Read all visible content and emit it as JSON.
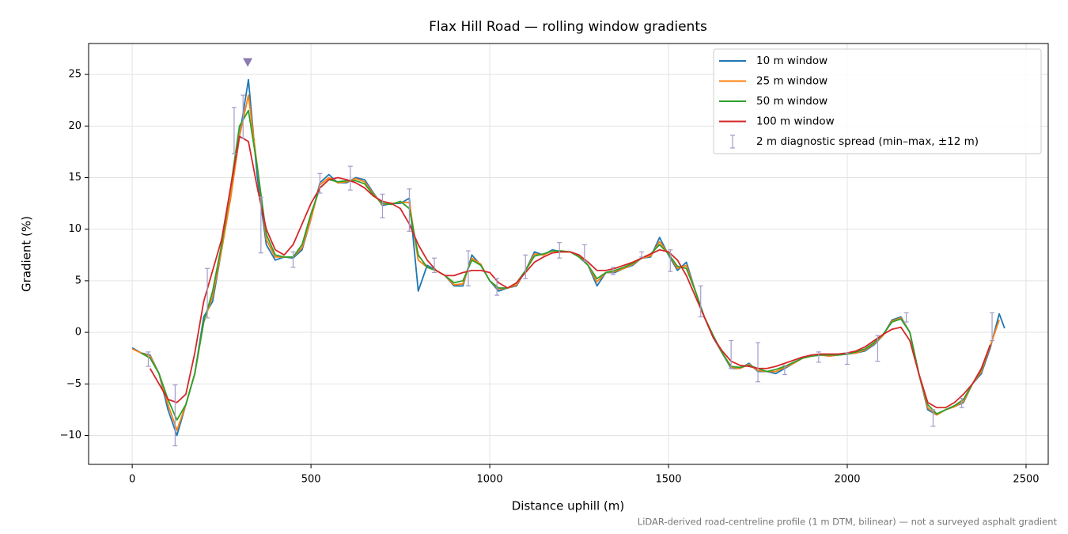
{
  "chart_data": {
    "type": "line",
    "title": "Flax Hill Road — rolling window gradients",
    "xlabel": "Distance uphill (m)",
    "ylabel": "Gradient (%)",
    "footnote": "LiDAR-derived road-centreline profile (1 m DTM, bilinear) — not a surveyed asphalt gradient",
    "xlim": [
      -122,
      2562
    ],
    "ylim": [
      -12.8,
      28.0
    ],
    "xticks": [
      0,
      500,
      1000,
      1500,
      2000,
      2500
    ],
    "yticks": [
      {
        "value": -10,
        "label": "−10"
      },
      {
        "value": -5,
        "label": "−5"
      },
      0,
      5,
      10,
      15,
      20,
      25
    ],
    "grid": true,
    "legend": "upper right",
    "x": [
      0,
      25,
      50,
      75,
      100,
      125,
      150,
      175,
      200,
      225,
      250,
      275,
      300,
      325,
      350,
      375,
      400,
      425,
      450,
      475,
      500,
      525,
      550,
      575,
      600,
      625,
      650,
      675,
      700,
      725,
      750,
      775,
      800,
      825,
      850,
      875,
      900,
      925,
      950,
      975,
      1000,
      1025,
      1050,
      1075,
      1100,
      1125,
      1150,
      1175,
      1200,
      1225,
      1250,
      1275,
      1300,
      1325,
      1350,
      1375,
      1400,
      1425,
      1450,
      1475,
      1500,
      1525,
      1550,
      1575,
      1600,
      1625,
      1650,
      1675,
      1700,
      1725,
      1750,
      1775,
      1800,
      1825,
      1850,
      1875,
      1900,
      1925,
      1950,
      1975,
      2000,
      2025,
      2050,
      2075,
      2100,
      2125,
      2150,
      2175,
      2200,
      2225,
      2250,
      2275,
      2300,
      2325,
      2350,
      2375,
      2400,
      2425,
      2440
    ],
    "series": [
      {
        "name": "10 m window",
        "color": "#1f77b4",
        "values": [
          -1.5,
          -2.0,
          -2.2,
          -4,
          -7.5,
          -10,
          -7,
          -4,
          1.5,
          3,
          8,
          13,
          19,
          24.5,
          15,
          8.5,
          7,
          7.3,
          7.2,
          8,
          11,
          14.5,
          15.3,
          14.5,
          14.5,
          15,
          14.8,
          13.5,
          12.3,
          12.5,
          12.5,
          13,
          4,
          6.5,
          6,
          5.5,
          4.5,
          4.5,
          7.5,
          6.5,
          5,
          4,
          4.3,
          4.5,
          6,
          7.8,
          7.5,
          8,
          7.8,
          7.8,
          7.5,
          6.5,
          4.5,
          5.8,
          5.8,
          6.2,
          6.5,
          7.2,
          7.3,
          9.2,
          7.5,
          6,
          6.8,
          4,
          1.5,
          -0.5,
          -2,
          -3.5,
          -3.5,
          -3,
          -3.8,
          -3.8,
          -4,
          -3.5,
          -3,
          -2.5,
          -2.3,
          -2.2,
          -2.3,
          -2.2,
          -2.1,
          -2,
          -1.8,
          -1.2,
          -0.3,
          1.2,
          1.5,
          0,
          -4,
          -7.5,
          -8,
          -7.5,
          -7.2,
          -6.8,
          -5,
          -4,
          -1.5,
          1.8,
          0.4
        ]
      },
      {
        "name": "25 m window",
        "color": "#ff7f0e",
        "values": [
          -1.6,
          -2,
          -2.3,
          -4,
          -7,
          -9.5,
          -7,
          -4,
          1,
          3.5,
          8,
          13,
          19,
          23,
          16,
          9,
          7.3,
          7.3,
          7.3,
          8.2,
          11,
          14.3,
          15,
          14.5,
          14.6,
          14.9,
          14.6,
          13.4,
          12.4,
          12.5,
          12.6,
          12.6,
          7,
          6.3,
          6,
          5.5,
          4.6,
          4.7,
          7.2,
          6.6,
          5,
          4.2,
          4.3,
          4.6,
          6,
          7.6,
          7.5,
          7.9,
          7.8,
          7.8,
          7.4,
          6.5,
          4.9,
          5.8,
          5.9,
          6.2,
          6.6,
          7.2,
          7.4,
          8.8,
          7.6,
          6.2,
          6.5,
          4,
          1.5,
          -0.4,
          -2,
          -3.4,
          -3.5,
          -3.1,
          -3.7,
          -3.8,
          -3.8,
          -3.4,
          -3,
          -2.5,
          -2.3,
          -2.2,
          -2.3,
          -2.2,
          -2.1,
          -2,
          -1.7,
          -1.1,
          -0.3,
          1.1,
          1.4,
          0,
          -4,
          -7.3,
          -8,
          -7.5,
          -7.2,
          -6.7,
          -5,
          -3.8,
          -1.3,
          1.2,
          null
        ]
      },
      {
        "name": "50 m window",
        "color": "#2ca02c",
        "values": [
          null,
          -2,
          -2.5,
          -4,
          -6.5,
          -8.5,
          -7,
          -4,
          1,
          4,
          8.5,
          14,
          20,
          21.5,
          16,
          9.5,
          7.5,
          7.3,
          7.3,
          8.5,
          11.5,
          14,
          14.8,
          14.6,
          14.7,
          14.7,
          14.4,
          13.3,
          12.5,
          12.4,
          12.7,
          12,
          7.5,
          6.3,
          6,
          5.5,
          4.8,
          5,
          7,
          6.5,
          5,
          4.3,
          4.3,
          4.8,
          6,
          7.4,
          7.6,
          7.9,
          7.9,
          7.8,
          7.3,
          6.5,
          5.2,
          5.8,
          6,
          6.3,
          6.7,
          7.2,
          7.6,
          8.5,
          7.6,
          6.4,
          6.2,
          4,
          1.5,
          -0.3,
          -2,
          -3.3,
          -3.4,
          -3.2,
          -3.5,
          -3.8,
          -3.6,
          -3.3,
          -2.9,
          -2.5,
          -2.3,
          -2.2,
          -2.2,
          -2.2,
          -2.1,
          -1.9,
          -1.6,
          -1,
          -0.2,
          1,
          1.3,
          0,
          -4,
          -7,
          -7.9,
          -7.5,
          -7.1,
          -6.5,
          -5,
          -3.6,
          -1.2,
          null,
          null
        ]
      },
      {
        "name": "100 m window",
        "color": "#d62728",
        "values": [
          null,
          null,
          -3.5,
          -5,
          -6.5,
          -6.8,
          -6,
          -2,
          3,
          6,
          9,
          14,
          19,
          18.5,
          14,
          10,
          8,
          7.5,
          8.5,
          10.5,
          12.5,
          14,
          14.8,
          15,
          14.8,
          14.5,
          14,
          13.2,
          12.7,
          12.5,
          12,
          10.5,
          8.5,
          7,
          6,
          5.5,
          5.5,
          5.8,
          6,
          6,
          5.8,
          4.8,
          4.3,
          4.8,
          5.8,
          6.8,
          7.3,
          7.7,
          7.8,
          7.8,
          7.5,
          6.8,
          6,
          6,
          6.2,
          6.5,
          6.8,
          7.2,
          7.6,
          8,
          7.8,
          7,
          5.5,
          3.5,
          1.5,
          -0.5,
          -1.8,
          -2.8,
          -3.2,
          -3.3,
          -3.5,
          -3.5,
          -3.3,
          -3,
          -2.7,
          -2.4,
          -2.2,
          -2.1,
          -2.1,
          -2.1,
          -2,
          -1.8,
          -1.4,
          -0.8,
          -0.2,
          0.3,
          0.5,
          -0.8,
          -4,
          -6.8,
          -7.3,
          -7.3,
          -6.8,
          -6,
          -5,
          -3.5,
          -1.2,
          null,
          null
        ]
      }
    ],
    "errorbars": {
      "name": "2 m diagnostic spread (min–max, ±12 m)",
      "color": "#a29cc8",
      "x": [
        45,
        120,
        210,
        285,
        310,
        360,
        450,
        525,
        610,
        700,
        775,
        845,
        940,
        1020,
        1100,
        1195,
        1265,
        1345,
        1425,
        1505,
        1590,
        1675,
        1750,
        1825,
        1920,
        2000,
        2085,
        2165,
        2240,
        2320,
        2405
      ],
      "low": [
        -3.3,
        -11,
        1.4,
        17.3,
        18.8,
        7.7,
        6.3,
        13.5,
        13.8,
        11.1,
        9.8,
        5.8,
        4.5,
        3.6,
        5.2,
        7.2,
        6.9,
        5.6,
        7.3,
        5.9,
        1.5,
        -3.5,
        -4.8,
        -4.1,
        -2.9,
        -3.1,
        -2.8,
        1.0,
        -9.1,
        -7.3,
        -0.8
      ],
      "high": [
        -1.9,
        -5.1,
        6.2,
        21.8,
        23,
        13.1,
        7.8,
        15.4,
        16.1,
        13.4,
        13.9,
        7.2,
        7.9,
        5.2,
        7.5,
        8.7,
        8.5,
        6.3,
        7.8,
        8.0,
        4.5,
        -0.8,
        -1,
        -3.2,
        -1.9,
        -2,
        -0.3,
        1.9,
        -7.5,
        -6.4,
        1.9
      ]
    },
    "peak_marker": {
      "x": 323,
      "y": 26.2,
      "color": "#8c7cb0"
    }
  }
}
